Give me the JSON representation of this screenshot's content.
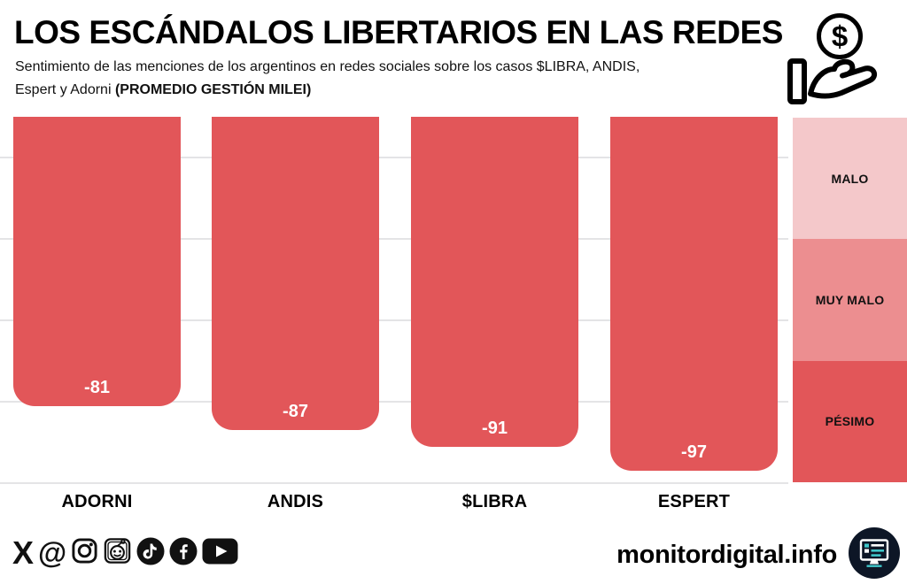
{
  "header": {
    "title": "LOS ESCÁNDALOS LIBERTARIOS EN LAS REDES",
    "subtitle_line1": "Sentimiento de las menciones de los argentinos en redes sociales sobre los casos $LIBRA, ANDIS,",
    "subtitle_line2_regular": "Espert y Adorni ",
    "subtitle_line2_bold": "(PROMEDIO GESTIÓN MILEI)",
    "money_icon": "hand-receiving-dollar-coin"
  },
  "chart_data": {
    "type": "bar",
    "categories": [
      "ADORNI",
      "ANDIS",
      "$LIBRA",
      "ESPERT"
    ],
    "values": [
      -81,
      -87,
      -91,
      -97
    ],
    "bar_labels": [
      "-81",
      "-87",
      "-91",
      "-97"
    ],
    "title": "LOS ESCÁNDALOS LIBERTARIOS EN LAS REDES",
    "xlabel": "",
    "ylabel": "",
    "ylim": [
      -100,
      -10
    ],
    "gridlines": [
      -20,
      -40,
      -60,
      -80,
      -100
    ],
    "grid": true,
    "bar_color": "#e25659",
    "gridline_color": "#e4e4e6",
    "legend_position": "right",
    "legend": [
      {
        "label": "MALO",
        "color": "#f4c8ca"
      },
      {
        "label": "MUY MALO",
        "color": "#ec8e90"
      },
      {
        "label": "PÉSIMO",
        "color": "#e25659"
      }
    ]
  },
  "footer": {
    "social_icons": [
      "x-twitter",
      "threads",
      "instagram",
      "reddit",
      "tiktok",
      "facebook",
      "youtube"
    ],
    "x_glyph": "X",
    "threads_glyph": "@",
    "site": "monitordigital.info",
    "logo_icon": "monitor-dashboard",
    "logo_bg": "#0d1626",
    "logo_accent": "#3fc6c9"
  }
}
